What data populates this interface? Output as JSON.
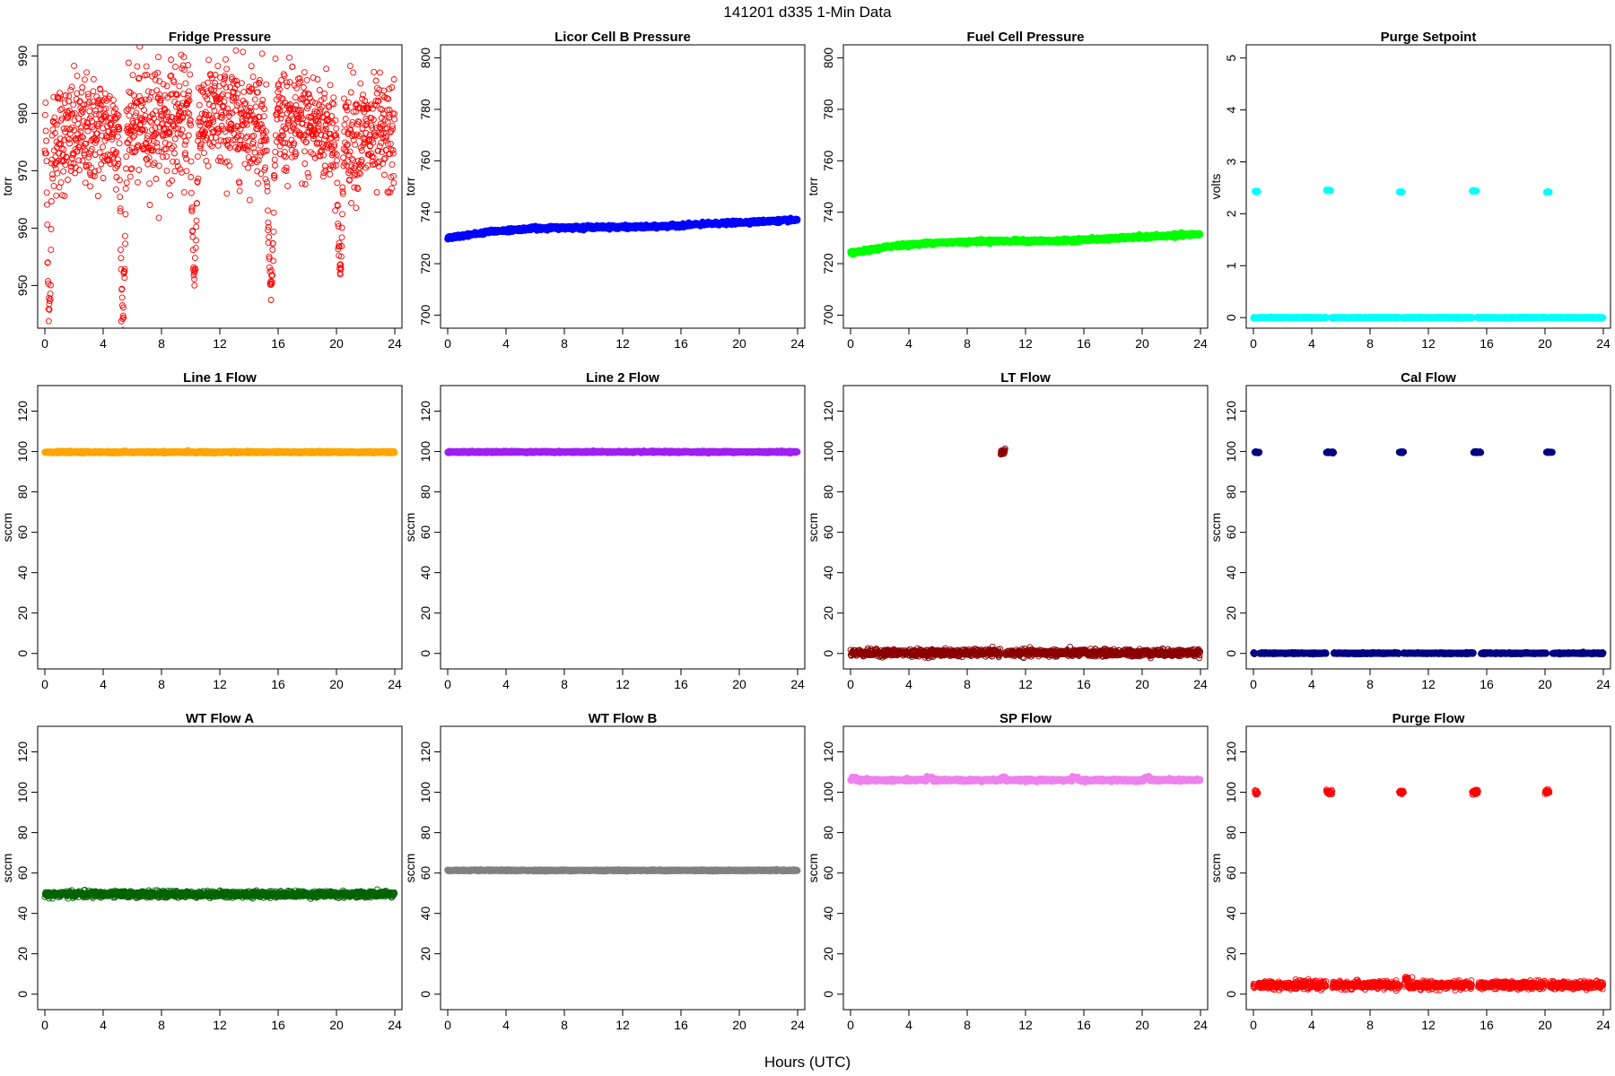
{
  "figure": {
    "title": "141201   d335   1-Min Data",
    "xlabel": "Hours (UTC)"
  },
  "chart_data": [
    {
      "type": "scatter",
      "title": "Fridge Pressure",
      "ylabel": "torr",
      "xlim": [
        0,
        24
      ],
      "ylim": [
        943.5,
        991
      ],
      "xticks": [
        0,
        4,
        8,
        12,
        16,
        20,
        24
      ],
      "yticks": [
        950,
        960,
        970,
        980,
        990
      ],
      "color": "#ff0000",
      "marker": "open-circle",
      "pattern": {
        "kind": "noisy",
        "base": 975,
        "drift": 4,
        "noise": 7,
        "dips": [
          [
            0.1,
            0.5,
            945
          ],
          [
            5.1,
            5.6,
            945
          ],
          [
            10.0,
            10.5,
            952
          ],
          [
            15.2,
            15.8,
            950
          ],
          [
            20.0,
            20.5,
            952
          ]
        ]
      }
    },
    {
      "type": "scatter",
      "title": "Licor Cell B Pressure",
      "ylabel": "torr",
      "xlim": [
        0,
        24
      ],
      "ylim": [
        697,
        803
      ],
      "xticks": [
        0,
        4,
        8,
        12,
        16,
        20,
        24
      ],
      "yticks": [
        700,
        720,
        740,
        760,
        780,
        800
      ],
      "color": "#0000ff",
      "marker": "filled-circle",
      "pattern": {
        "kind": "curve",
        "points": [
          [
            0,
            730
          ],
          [
            3,
            732.5
          ],
          [
            6,
            733.8
          ],
          [
            10,
            734.2
          ],
          [
            14,
            734.3
          ],
          [
            18,
            735.5
          ],
          [
            24,
            737
          ]
        ],
        "noise": 0.3
      }
    },
    {
      "type": "scatter",
      "title": "Fuel Cell Pressure",
      "ylabel": "torr",
      "xlim": [
        0,
        24
      ],
      "ylim": [
        697,
        803
      ],
      "xticks": [
        0,
        4,
        8,
        12,
        16,
        20,
        24
      ],
      "yticks": [
        700,
        720,
        740,
        760,
        780,
        800
      ],
      "color": "#00ff00",
      "marker": "filled-circle",
      "pattern": {
        "kind": "curve",
        "points": [
          [
            0,
            724
          ],
          [
            3,
            727
          ],
          [
            6,
            728.2
          ],
          [
            10,
            728.8
          ],
          [
            14,
            728.8
          ],
          [
            18,
            729.8
          ],
          [
            24,
            731.5
          ]
        ],
        "noise": 0.3
      }
    },
    {
      "type": "scatter",
      "title": "Purge Setpoint",
      "ylabel": "volts",
      "xlim": [
        0,
        24
      ],
      "ylim": [
        -0.1,
        5.15
      ],
      "xticks": [
        0,
        4,
        8,
        12,
        16,
        20,
        24
      ],
      "yticks": [
        0,
        1,
        2,
        3,
        4,
        5
      ],
      "color": "#00ffff",
      "marker": "filled-circle",
      "pattern": {
        "kind": "flat",
        "base": 0,
        "noise": 0.005,
        "spikes": [
          [
            0.1,
            0.3,
            2.43
          ],
          [
            5.0,
            5.3,
            2.45
          ],
          [
            10.0,
            10.2,
            2.42
          ],
          [
            15.0,
            15.3,
            2.44
          ],
          [
            20.1,
            20.3,
            2.42
          ]
        ]
      }
    },
    {
      "type": "scatter",
      "title": "Line 1 Flow",
      "ylabel": "sccm",
      "xlim": [
        0,
        24
      ],
      "ylim": [
        -5,
        130
      ],
      "xticks": [
        0,
        4,
        8,
        12,
        16,
        20,
        24
      ],
      "yticks": [
        0,
        20,
        40,
        60,
        80,
        100,
        120
      ],
      "color": "#ffa500",
      "marker": "filled-circle",
      "pattern": {
        "kind": "flat",
        "base": 99.7,
        "noise": 0.2,
        "spikes": []
      }
    },
    {
      "type": "scatter",
      "title": "Line 2 Flow",
      "ylabel": "sccm",
      "xlim": [
        0,
        24
      ],
      "ylim": [
        -5,
        130
      ],
      "xticks": [
        0,
        4,
        8,
        12,
        16,
        20,
        24
      ],
      "yticks": [
        0,
        20,
        40,
        60,
        80,
        100,
        120
      ],
      "color": "#a020f0",
      "marker": "filled-circle",
      "pattern": {
        "kind": "flat",
        "base": 99.8,
        "noise": 0.2,
        "spikes": []
      }
    },
    {
      "type": "scatter",
      "title": "LT Flow",
      "ylabel": "sccm",
      "xlim": [
        0,
        24
      ],
      "ylim": [
        -5,
        130
      ],
      "xticks": [
        0,
        4,
        8,
        12,
        16,
        20,
        24
      ],
      "yticks": [
        0,
        20,
        40,
        60,
        80,
        100,
        120
      ],
      "color": "#8b0000",
      "marker": "open-circle",
      "pattern": {
        "kind": "noisy",
        "base": 0.3,
        "drift": 0,
        "noise": 1.2,
        "dips": [],
        "spikes": [
          [
            10.3,
            10.6,
            99.8
          ]
        ]
      }
    },
    {
      "type": "scatter",
      "title": "Cal Flow",
      "ylabel": "sccm",
      "xlim": [
        0,
        24
      ],
      "ylim": [
        -5,
        130
      ],
      "xticks": [
        0,
        4,
        8,
        12,
        16,
        20,
        24
      ],
      "yticks": [
        0,
        20,
        40,
        60,
        80,
        100,
        120
      ],
      "color": "#000080",
      "marker": "filled-circle",
      "pattern": {
        "kind": "flat",
        "base": 0.1,
        "noise": 0.15,
        "spikes": [
          [
            0.1,
            0.4,
            99.6
          ],
          [
            5.0,
            5.5,
            99.6
          ],
          [
            10.0,
            10.3,
            99.6
          ],
          [
            15.1,
            15.6,
            99.6
          ],
          [
            20.1,
            20.5,
            99.6
          ]
        ]
      }
    },
    {
      "type": "scatter",
      "title": "WT Flow A",
      "ylabel": "sccm",
      "xlim": [
        0,
        24
      ],
      "ylim": [
        -5,
        130
      ],
      "xticks": [
        0,
        4,
        8,
        12,
        16,
        20,
        24
      ],
      "yticks": [
        0,
        20,
        40,
        60,
        80,
        100,
        120
      ],
      "color": "#006400",
      "marker": "open-circle",
      "pattern": {
        "kind": "noisy",
        "base": 49.5,
        "drift": 0,
        "noise": 1.1,
        "dips": []
      }
    },
    {
      "type": "scatter",
      "title": "WT Flow B",
      "ylabel": "sccm",
      "xlim": [
        0,
        24
      ],
      "ylim": [
        -5,
        130
      ],
      "xticks": [
        0,
        4,
        8,
        12,
        16,
        20,
        24
      ],
      "yticks": [
        0,
        20,
        40,
        60,
        80,
        100,
        120
      ],
      "color": "#808080",
      "marker": "filled-circle",
      "pattern": {
        "kind": "flat",
        "base": 61.3,
        "noise": 0.15,
        "spikes": []
      }
    },
    {
      "type": "scatter",
      "title": "SP Flow",
      "ylabel": "sccm",
      "xlim": [
        0,
        24
      ],
      "ylim": [
        -5,
        130
      ],
      "xticks": [
        0,
        4,
        8,
        12,
        16,
        20,
        24
      ],
      "yticks": [
        0,
        20,
        40,
        60,
        80,
        100,
        120
      ],
      "color": "#ee82ee",
      "marker": "filled-circle",
      "pattern": {
        "kind": "flat",
        "base": 106,
        "noise": 0.3,
        "spikes": [
          [
            0.1,
            0.4,
            107.2
          ],
          [
            5.2,
            5.6,
            107.2
          ],
          [
            10.3,
            10.6,
            107.2
          ],
          [
            15.2,
            15.6,
            107.2
          ],
          [
            20.2,
            20.5,
            107.2
          ]
        ]
      }
    },
    {
      "type": "scatter",
      "title": "Purge Flow",
      "ylabel": "sccm",
      "xlim": [
        0,
        24
      ],
      "ylim": [
        -5,
        130
      ],
      "xticks": [
        0,
        4,
        8,
        12,
        16,
        20,
        24
      ],
      "yticks": [
        0,
        20,
        40,
        60,
        80,
        100,
        120
      ],
      "color": "#ff0000",
      "marker": "open-circle",
      "pattern": {
        "kind": "noisy",
        "base": 4.5,
        "drift": 0,
        "noise": 1.3,
        "dips": [],
        "spikes": [
          [
            0.1,
            0.3,
            100
          ],
          [
            5.0,
            5.4,
            100
          ],
          [
            10.0,
            10.3,
            100
          ],
          [
            15.0,
            15.4,
            100
          ],
          [
            20.0,
            20.3,
            100
          ],
          [
            10.4,
            10.6,
            7.5
          ]
        ]
      }
    }
  ]
}
